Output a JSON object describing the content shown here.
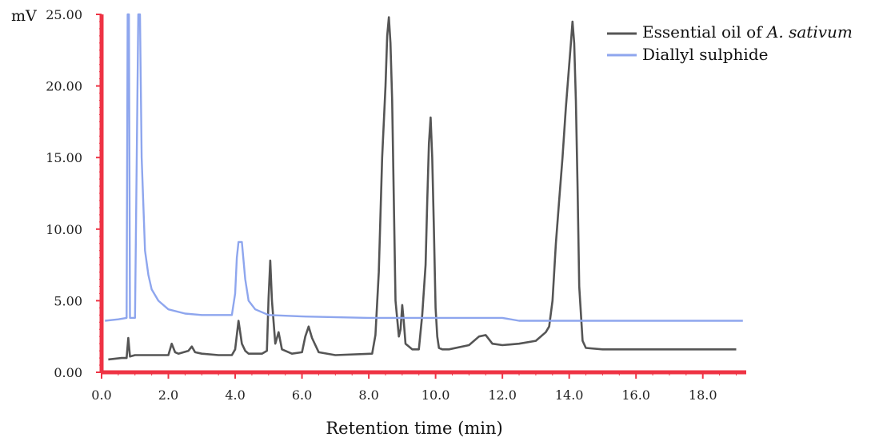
{
  "chart_data": {
    "type": "line",
    "y_unit": "mV",
    "xlabel": "Retention time (min)",
    "xlim": [
      0,
      19.3
    ],
    "ylim": [
      0,
      25
    ],
    "x_ticks": [
      0,
      2,
      4,
      6,
      8,
      10,
      12,
      14,
      16,
      18
    ],
    "x_tick_labels": [
      "0.0",
      "2.0",
      "4.0",
      "6.0",
      "8.0",
      "10.0",
      "12.0",
      "14.0",
      "16.0",
      "18.0"
    ],
    "y_ticks": [
      0,
      5,
      10,
      15,
      20,
      25
    ],
    "y_tick_labels": [
      "0.00",
      "5.00",
      "10.00",
      "15.00",
      "20.00",
      "25.00"
    ],
    "axis_color": "#ee3344",
    "legend": {
      "position": "top-right"
    },
    "series": [
      {
        "name_parts": [
          "Essential oil of ",
          "A. sativum"
        ],
        "color": "#555555",
        "x": [
          0.2,
          0.6,
          0.75,
          0.8,
          0.85,
          1.0,
          1.5,
          2.0,
          2.1,
          2.2,
          2.3,
          2.6,
          2.7,
          2.8,
          3.0,
          3.5,
          3.9,
          4.0,
          4.1,
          4.2,
          4.3,
          4.4,
          4.8,
          4.95,
          5.0,
          5.05,
          5.1,
          5.2,
          5.3,
          5.4,
          5.7,
          6.0,
          6.1,
          6.2,
          6.3,
          6.5,
          7.0,
          8.1,
          8.2,
          8.3,
          8.4,
          8.5,
          8.55,
          8.6,
          8.65,
          8.7,
          8.75,
          8.8,
          8.9,
          8.95,
          9.0,
          9.05,
          9.1,
          9.3,
          9.5,
          9.6,
          9.7,
          9.75,
          9.8,
          9.85,
          9.9,
          9.95,
          10.0,
          10.05,
          10.1,
          10.2,
          10.4,
          11.0,
          11.3,
          11.5,
          11.7,
          12.0,
          12.5,
          13.0,
          13.3,
          13.4,
          13.5,
          13.6,
          13.7,
          13.8,
          13.9,
          14.0,
          14.05,
          14.1,
          14.15,
          14.2,
          14.25,
          14.3,
          14.4,
          14.5,
          15.0,
          16.0,
          17.0,
          18.0,
          19.0
        ],
        "y": [
          0.9,
          1.0,
          1.0,
          2.4,
          1.1,
          1.2,
          1.2,
          1.2,
          2.0,
          1.4,
          1.3,
          1.5,
          1.8,
          1.4,
          1.3,
          1.2,
          1.2,
          1.6,
          3.6,
          2.0,
          1.5,
          1.3,
          1.3,
          1.5,
          5.2,
          7.8,
          5.0,
          2.0,
          2.8,
          1.6,
          1.3,
          1.4,
          2.5,
          3.2,
          2.4,
          1.4,
          1.2,
          1.3,
          2.6,
          7.0,
          15.0,
          20.0,
          23.5,
          24.8,
          23.0,
          19.0,
          12.0,
          5.0,
          2.5,
          3.0,
          4.7,
          3.5,
          2.0,
          1.6,
          1.6,
          4.0,
          7.5,
          12.0,
          16.0,
          17.8,
          15.0,
          10.0,
          4.5,
          2.5,
          1.7,
          1.6,
          1.6,
          1.9,
          2.5,
          2.6,
          2.0,
          1.9,
          2.0,
          2.2,
          2.8,
          3.2,
          5.0,
          9.0,
          12.0,
          15.0,
          18.5,
          21.5,
          23.0,
          24.5,
          23.0,
          19.0,
          13.0,
          6.0,
          2.2,
          1.7,
          1.6,
          1.6,
          1.6,
          1.6,
          1.6
        ]
      },
      {
        "name": "Diallyl sulphide",
        "color": "#8ea6ee",
        "x": [
          0.1,
          0.5,
          0.75,
          0.78,
          0.82,
          0.85,
          1.0,
          1.1,
          1.15,
          1.2,
          1.3,
          1.4,
          1.5,
          1.7,
          2.0,
          2.5,
          3.0,
          3.5,
          3.9,
          4.0,
          4.05,
          4.1,
          4.2,
          4.3,
          4.4,
          4.6,
          5.0,
          6.0,
          8.0,
          10.0,
          12.0,
          12.5,
          13.0,
          15.0,
          17.0,
          19.2
        ],
        "y": [
          3.6,
          3.7,
          3.8,
          25,
          25,
          3.8,
          3.8,
          25,
          25,
          15.0,
          8.5,
          6.8,
          5.8,
          5.0,
          4.4,
          4.1,
          4.0,
          4.0,
          4.0,
          5.5,
          8.0,
          9.1,
          9.1,
          6.5,
          5.0,
          4.4,
          4.0,
          3.9,
          3.8,
          3.8,
          3.8,
          3.6,
          3.6,
          3.6,
          3.6,
          3.6
        ]
      }
    ]
  }
}
